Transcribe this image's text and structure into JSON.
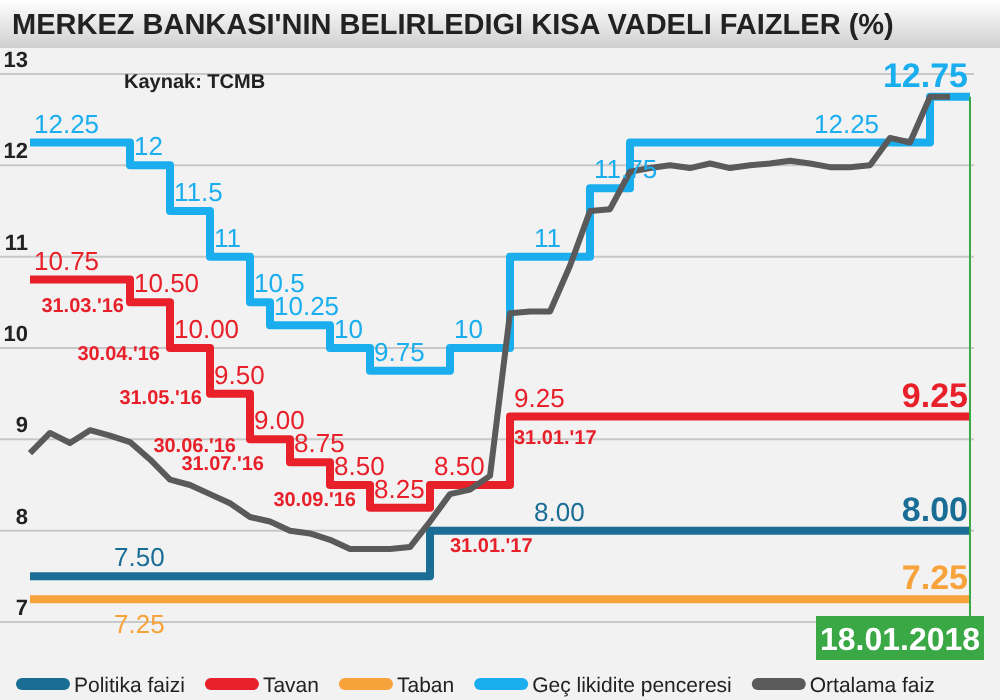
{
  "chart_data": {
    "type": "step",
    "title": "MERKEZ BANKASI'NIN BELIRLEDIGI KISA VADELI FAIZLER (%)",
    "categories": [
      null,
      null,
      null,
      null,
      null,
      null,
      null,
      null,
      null,
      null,
      null,
      null,
      null,
      null,
      null,
      null,
      null,
      null,
      null,
      null,
      null,
      null,
      null,
      null,
      null,
      null,
      null,
      null,
      null,
      null,
      null,
      null,
      null,
      null,
      null,
      null,
      null,
      null,
      null,
      null,
      null,
      null,
      null,
      null,
      null,
      null,
      null,
      null
    ],
    "ylim": [
      7,
      13
    ],
    "yticks": [
      7,
      8,
      9,
      10,
      11,
      12,
      13
    ],
    "grid": "y",
    "legend": "bottom",
    "series": [
      {
        "name": "Politika faizi",
        "color": "#1a6e96",
        "values": [
          7.5,
          7.5,
          7.5,
          7.5,
          7.5,
          7.5,
          7.5,
          7.5,
          7.5,
          7.5,
          7.5,
          7.5,
          7.5,
          7.5,
          7.5,
          7.5,
          7.5,
          7.5,
          7.5,
          7.5,
          8.0,
          8.0,
          8.0,
          8.0,
          8.0,
          8.0,
          8.0,
          8.0,
          8.0,
          8.0,
          8.0,
          8.0,
          8.0,
          8.0,
          8.0,
          8.0,
          8.0,
          8.0,
          8.0,
          8.0,
          8.0,
          8.0,
          8.0,
          8.0,
          8.0,
          8.0,
          8.0,
          8.0
        ],
        "value_labels": [
          null,
          null,
          null,
          null,
          "7.50",
          null,
          null,
          null,
          null,
          null,
          null,
          null,
          null,
          null,
          null,
          null,
          null,
          null,
          null,
          null,
          null,
          null,
          null,
          null,
          null,
          "8.00",
          null,
          null,
          null,
          null,
          null,
          null,
          null,
          null,
          null,
          null,
          null,
          null,
          null,
          null,
          null,
          null,
          null,
          null,
          null,
          null,
          null,
          "8.00"
        ]
      },
      {
        "name": "Tavan",
        "color": "#e8202a",
        "values": [
          10.75,
          10.75,
          10.75,
          10.75,
          10.75,
          10.5,
          10.5,
          10.0,
          10.0,
          9.5,
          9.5,
          9.0,
          9.0,
          8.75,
          8.75,
          8.5,
          8.5,
          8.25,
          8.25,
          8.25,
          8.5,
          8.5,
          8.5,
          8.5,
          9.25,
          9.25,
          9.25,
          9.25,
          9.25,
          9.25,
          9.25,
          9.25,
          9.25,
          9.25,
          9.25,
          9.25,
          9.25,
          9.25,
          9.25,
          9.25,
          9.25,
          9.25,
          9.25,
          9.25,
          9.25,
          9.25,
          9.25,
          9.25
        ],
        "value_labels": [
          "10.75",
          null,
          null,
          null,
          null,
          "10.50",
          null,
          "10.00",
          null,
          "9.50",
          null,
          "9.00",
          null,
          "8.75",
          null,
          "8.50",
          null,
          "8.25",
          null,
          null,
          "8.50",
          null,
          null,
          null,
          "9.25",
          null,
          null,
          null,
          null,
          null,
          null,
          null,
          null,
          null,
          null,
          null,
          null,
          null,
          null,
          null,
          null,
          null,
          null,
          null,
          null,
          null,
          null,
          "9.25"
        ]
      },
      {
        "name": "Taban",
        "color": "#f7a23a",
        "values": [
          7.25,
          7.25,
          7.25,
          7.25,
          7.25,
          7.25,
          7.25,
          7.25,
          7.25,
          7.25,
          7.25,
          7.25,
          7.25,
          7.25,
          7.25,
          7.25,
          7.25,
          7.25,
          7.25,
          7.25,
          7.25,
          7.25,
          7.25,
          7.25,
          7.25,
          7.25,
          7.25,
          7.25,
          7.25,
          7.25,
          7.25,
          7.25,
          7.25,
          7.25,
          7.25,
          7.25,
          7.25,
          7.25,
          7.25,
          7.25,
          7.25,
          7.25,
          7.25,
          7.25,
          7.25,
          7.25,
          7.25,
          7.25
        ],
        "value_labels": [
          null,
          null,
          null,
          null,
          "7.25",
          null,
          null,
          null,
          null,
          null,
          null,
          null,
          null,
          null,
          null,
          null,
          null,
          null,
          null,
          null,
          null,
          null,
          null,
          null,
          null,
          null,
          null,
          null,
          null,
          null,
          null,
          null,
          null,
          null,
          null,
          null,
          null,
          null,
          null,
          null,
          null,
          null,
          null,
          null,
          null,
          null,
          null,
          "7.25"
        ]
      },
      {
        "name": "Geç likidite penceresi",
        "color": "#1aaeef",
        "values": [
          12.25,
          12.25,
          12.25,
          12.25,
          12.25,
          12.0,
          12.0,
          11.5,
          11.5,
          11.0,
          11.0,
          10.5,
          10.25,
          10.25,
          10.25,
          10.0,
          10.0,
          9.75,
          9.75,
          9.75,
          9.75,
          10.0,
          10.0,
          10.0,
          11.0,
          11.0,
          11.0,
          11.0,
          11.75,
          11.75,
          12.25,
          12.25,
          12.25,
          12.25,
          12.25,
          12.25,
          12.25,
          12.25,
          12.25,
          12.25,
          12.25,
          12.25,
          12.25,
          12.25,
          12.25,
          12.75,
          12.75,
          12.75
        ],
        "value_labels": [
          "12.25",
          null,
          null,
          null,
          null,
          "12",
          null,
          "11.5",
          null,
          "11",
          null,
          "10.5",
          "10.25",
          null,
          null,
          "10",
          null,
          "9.75",
          null,
          null,
          null,
          "10",
          null,
          null,
          null,
          "11",
          null,
          null,
          "11.75",
          null,
          null,
          null,
          null,
          null,
          null,
          null,
          null,
          null,
          null,
          "12.25",
          null,
          null,
          null,
          null,
          null,
          null,
          null,
          "12.75"
        ]
      },
      {
        "name": "Ortalama faiz",
        "type": "line",
        "color": "#5a5a5a",
        "values": [
          8.85,
          9.07,
          8.96,
          9.1,
          9.04,
          8.97,
          8.78,
          8.56,
          8.5,
          8.4,
          8.3,
          8.15,
          8.1,
          8.0,
          7.97,
          7.9,
          7.8,
          7.8,
          7.8,
          7.82,
          8.1,
          8.4,
          8.45,
          8.6,
          10.38,
          10.4,
          10.4,
          10.9,
          11.5,
          11.52,
          11.93,
          11.97,
          12.0,
          11.97,
          12.02,
          11.97,
          12.0,
          12.02,
          12.05,
          12.02,
          11.98,
          11.98,
          12.0,
          12.3,
          12.25,
          12.75,
          12.75,
          null
        ]
      }
    ],
    "annotations": [
      "Kaynak: TCMB",
      "31.03.'16",
      "30.04.'16",
      "31.05.'16",
      "30.06.'16",
      "31.07.'16",
      "30.09.'16",
      "31.01.'17",
      "31.01.'17",
      "18.01.2018"
    ]
  }
}
